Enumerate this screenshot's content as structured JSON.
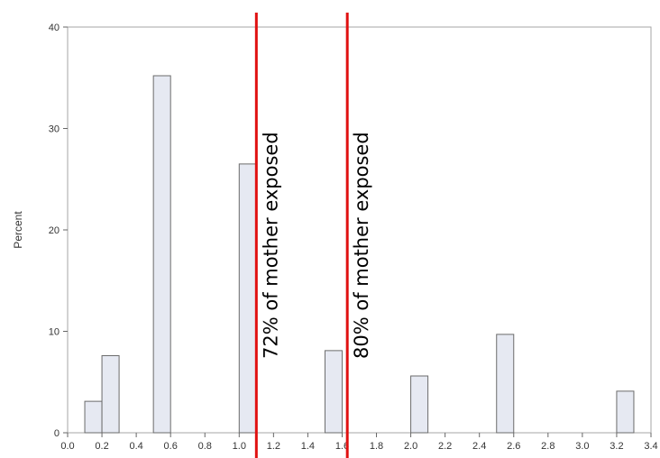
{
  "chart_data": {
    "type": "bar",
    "subtype": "histogram",
    "ylabel": "Percent",
    "xlabel": "",
    "xlim": [
      0.0,
      3.4
    ],
    "ylim": [
      0,
      40
    ],
    "x_ticks": [
      "0.0",
      "0.2",
      "0.4",
      "0.6",
      "0.8",
      "1.0",
      "1.2",
      "1.4",
      "1.6",
      "1.8",
      "2.0",
      "2.2",
      "2.4",
      "2.6",
      "2.8",
      "3.0",
      "3.2",
      "3.4"
    ],
    "y_ticks": [
      "0",
      "10",
      "20",
      "30",
      "40"
    ],
    "bin_width": 0.1,
    "bars": [
      {
        "center": 0.15,
        "value": 3.1
      },
      {
        "center": 0.25,
        "value": 7.6
      },
      {
        "center": 0.55,
        "value": 35.2
      },
      {
        "center": 1.05,
        "value": 26.5
      },
      {
        "center": 1.55,
        "value": 8.1
      },
      {
        "center": 2.05,
        "value": 5.6
      },
      {
        "center": 2.55,
        "value": 9.7
      },
      {
        "center": 3.25,
        "value": 4.1
      }
    ],
    "bar_fill": "#e6e9f2",
    "bar_stroke": "#6b6b6b",
    "grid": false,
    "reference_lines": [
      {
        "x": 1.1,
        "color": "#e01010",
        "label": "72% of mother exposed"
      },
      {
        "x": 1.63,
        "color": "#e01010",
        "label": "80% of mother exposed"
      }
    ]
  }
}
